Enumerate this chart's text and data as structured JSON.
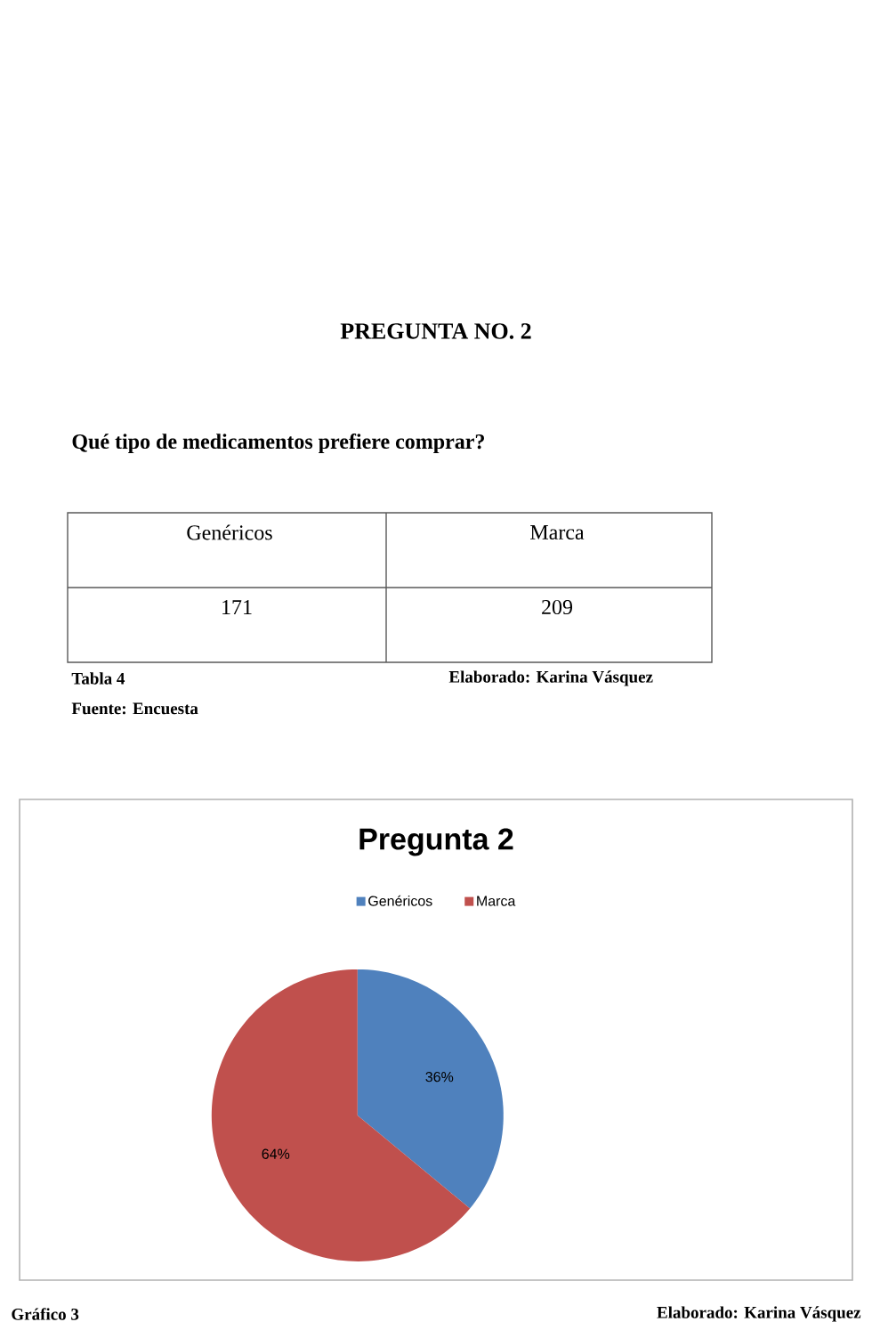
{
  "chart_data": {
    "type": "pie",
    "title": "Pregunta 2",
    "categories": [
      "Genéricos",
      "Marca"
    ],
    "values": [
      36,
      64
    ],
    "colors": [
      "#4f81bd",
      "#c0504d"
    ],
    "value_labels": [
      "36%",
      "64%"
    ],
    "legend": "top",
    "annotations": [
      "PREGUNTA NO. 2",
      "Qué tipo de medicamentos prefiere comprar?",
      "Genéricos",
      "Marca",
      "171",
      "209",
      "Tabla 4",
      "Elaborado: Karina Vásquez",
      "Fuente: Encuesta",
      "Gráfico 3",
      "Elaborado: Karina Vásquez"
    ]
  }
}
